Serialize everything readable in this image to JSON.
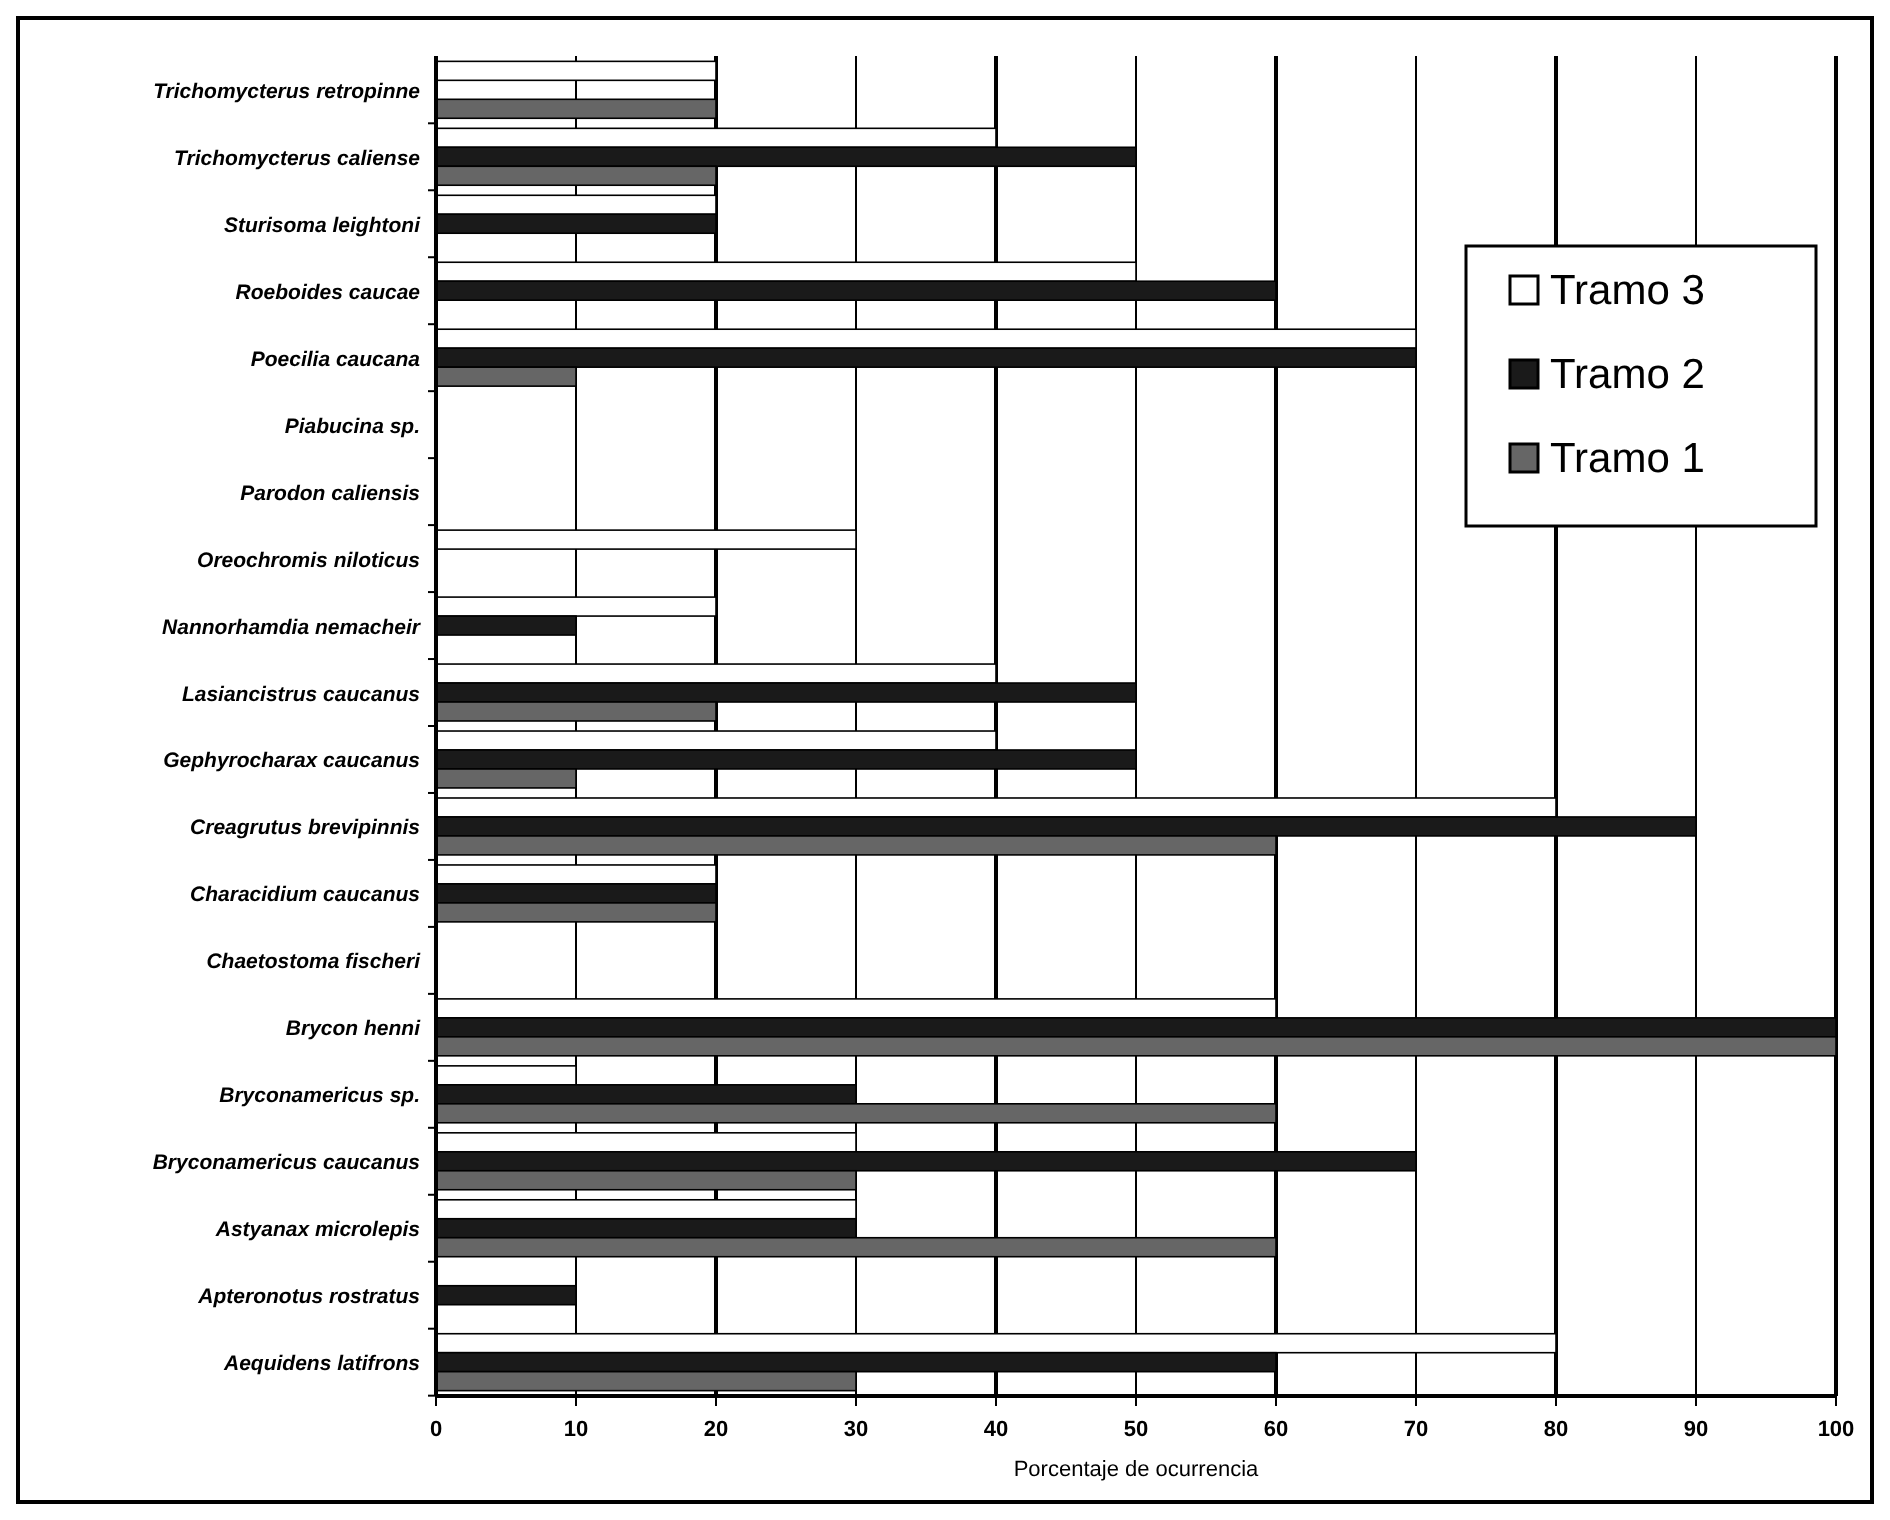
{
  "chart_data": {
    "type": "bar",
    "orientation": "horizontal",
    "xlabel": "Porcentaje de ocurrencia",
    "categories": [
      "Trichomycterus retropinne",
      "Trichomycterus caliense",
      "Sturisoma leightoni",
      "Roeboides caucae",
      "Poecilia caucana",
      "Piabucina sp.",
      "Parodon caliensis",
      "Oreochromis niloticus",
      "Nannorhamdia nemacheir",
      "Lasiancistrus caucanus",
      "Gephyrocharax caucanus",
      "Creagrutus brevipinnis",
      "Characidium caucanus",
      "Chaetostoma fischeri",
      "Brycon henni",
      "Bryconamericus sp.",
      "Bryconamericus caucanus",
      "Astyanax microlepis",
      "Apteronotus rostratus",
      "Aequidens latifrons"
    ],
    "series": [
      {
        "name": "Tramo 3",
        "color": "#ffffff",
        "values": [
          20,
          40,
          20,
          50,
          70,
          0,
          0,
          30,
          20,
          40,
          40,
          80,
          20,
          0,
          60,
          10,
          30,
          30,
          0,
          80
        ]
      },
      {
        "name": "Tramo 2",
        "color": "#1a1a1a",
        "values": [
          0,
          50,
          20,
          60,
          70,
          0,
          0,
          0,
          10,
          50,
          50,
          90,
          20,
          0,
          100,
          30,
          70,
          30,
          10,
          60
        ]
      },
      {
        "name": "Tramo 1",
        "color": "#666666",
        "values": [
          20,
          20,
          0,
          0,
          10,
          0,
          0,
          0,
          0,
          20,
          10,
          60,
          20,
          0,
          100,
          60,
          30,
          60,
          0,
          30
        ]
      }
    ],
    "xlim": [
      0,
      100
    ],
    "xticks": [
      0,
      10,
      20,
      30,
      40,
      50,
      60,
      70,
      80,
      90,
      100
    ],
    "grid": "x",
    "legend": "top right"
  }
}
